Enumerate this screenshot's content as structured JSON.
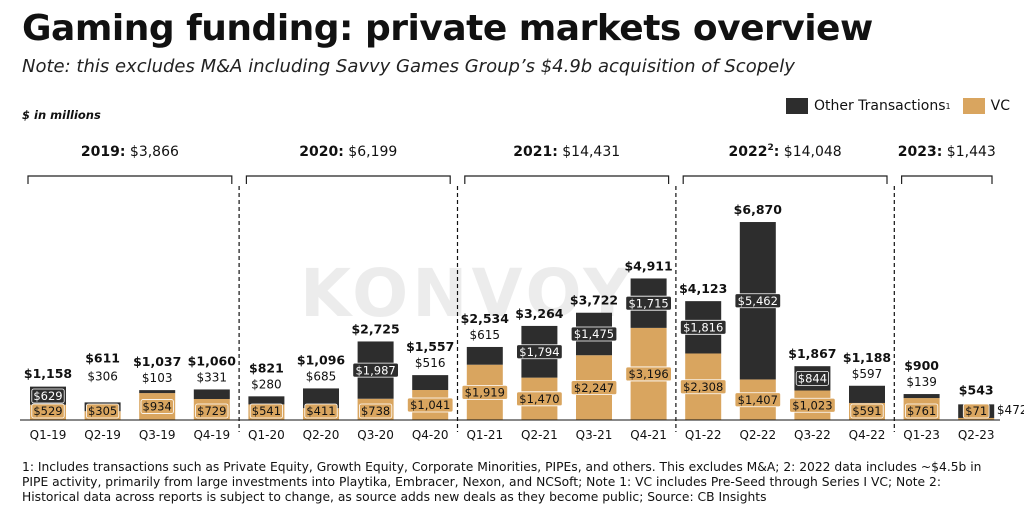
{
  "header": {
    "title": "Gaming funding: private markets overview",
    "subtitle": "Note: this excludes M&A including Savvy Games Group’s $4.9b acquisition of Scopely",
    "unit_label": "$ in millions"
  },
  "legend": {
    "other_label": "Other Transactions",
    "other_sup": "1",
    "vc_label": "VC"
  },
  "watermark": "KONVOY",
  "colors": {
    "other": "#2d2d2d",
    "vc": "#d9a55f"
  },
  "footnote": "1: Includes transactions such as Private Equity, Growth Equity, Corporate Minorities, PIPEs, and others. This excludes M&A; 2: 2022 data includes ~$4.5b in PIPE activity, primarily from large investments into Playtika, Embracer, Nexon, and NCSoft; Note 1: VC includes Pre-Seed through Series I VC; Note 2: Historical data across reports is subject to change, as source adds new deals as they become public; Source: CB Insights",
  "chart_data": {
    "type": "bar",
    "stacked": true,
    "categories": [
      "Q1-19",
      "Q2-19",
      "Q3-19",
      "Q4-19",
      "Q1-20",
      "Q2-20",
      "Q3-20",
      "Q4-20",
      "Q1-21",
      "Q2-21",
      "Q3-21",
      "Q4-21",
      "Q1-22",
      "Q2-22",
      "Q3-22",
      "Q4-22",
      "Q1-23",
      "Q2-23"
    ],
    "series": [
      {
        "name": "VC",
        "values": [
          529,
          305,
          934,
          729,
          541,
          411,
          738,
          1041,
          1919,
          1470,
          2247,
          3196,
          2308,
          1407,
          1023,
          591,
          761,
          71
        ],
        "labels": [
          "$529",
          "$305",
          "$934",
          "$729",
          "$541",
          "$411",
          "$738",
          "$1,041",
          "$1,919",
          "$1,470",
          "$2,247",
          "$3,196",
          "$2,308",
          "$1,407",
          "$1,023",
          "$591",
          "$761",
          "$71"
        ]
      },
      {
        "name": "Other Transactions",
        "values": [
          629,
          306,
          103,
          331,
          280,
          685,
          1987,
          516,
          615,
          1794,
          1475,
          1715,
          1816,
          5462,
          844,
          597,
          139,
          472
        ],
        "labels": [
          "$629",
          "$306",
          "$103",
          "$331",
          "$280",
          "$685",
          "$1,987",
          "$516",
          "$615",
          "$1,794",
          "$1,475",
          "$1,715",
          "$1,816",
          "$5,462",
          "$844",
          "$597",
          "$139",
          "$472"
        ]
      }
    ],
    "totals": [
      "$1,158",
      "$611",
      "$1,037",
      "$1,060",
      "$821",
      "$1,096",
      "$2,725",
      "$1,557",
      "$2,534",
      "$3,264",
      "$3,722",
      "$4,911",
      "$4,123",
      "$6,870",
      "$1,867",
      "$1,188",
      "$900",
      "$543"
    ],
    "years": [
      {
        "year": "2019",
        "sup": "",
        "total": "$3,866"
      },
      {
        "year": "2020",
        "sup": "",
        "total": "$6,199"
      },
      {
        "year": "2021",
        "sup": "",
        "total": "$14,431"
      },
      {
        "year": "2022",
        "sup": "2",
        "total": "$14,048"
      },
      {
        "year": "2023",
        "sup": "",
        "total": "$1,443"
      }
    ],
    "ylim": [
      0,
      7000
    ],
    "grid": false,
    "legend_position": "top-right"
  }
}
